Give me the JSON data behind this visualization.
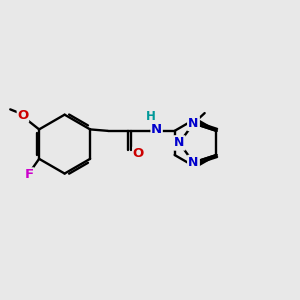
{
  "bg": "#e8e8e8",
  "lw": 1.7,
  "bond": "black",
  "N_color": "#0000cc",
  "O_color": "#cc0000",
  "F_color": "#cc00cc",
  "H_color": "#009999",
  "xlim": [
    0,
    10
  ],
  "ylim": [
    0,
    10
  ],
  "figsize": [
    3.0,
    3.0
  ],
  "dpi": 100
}
